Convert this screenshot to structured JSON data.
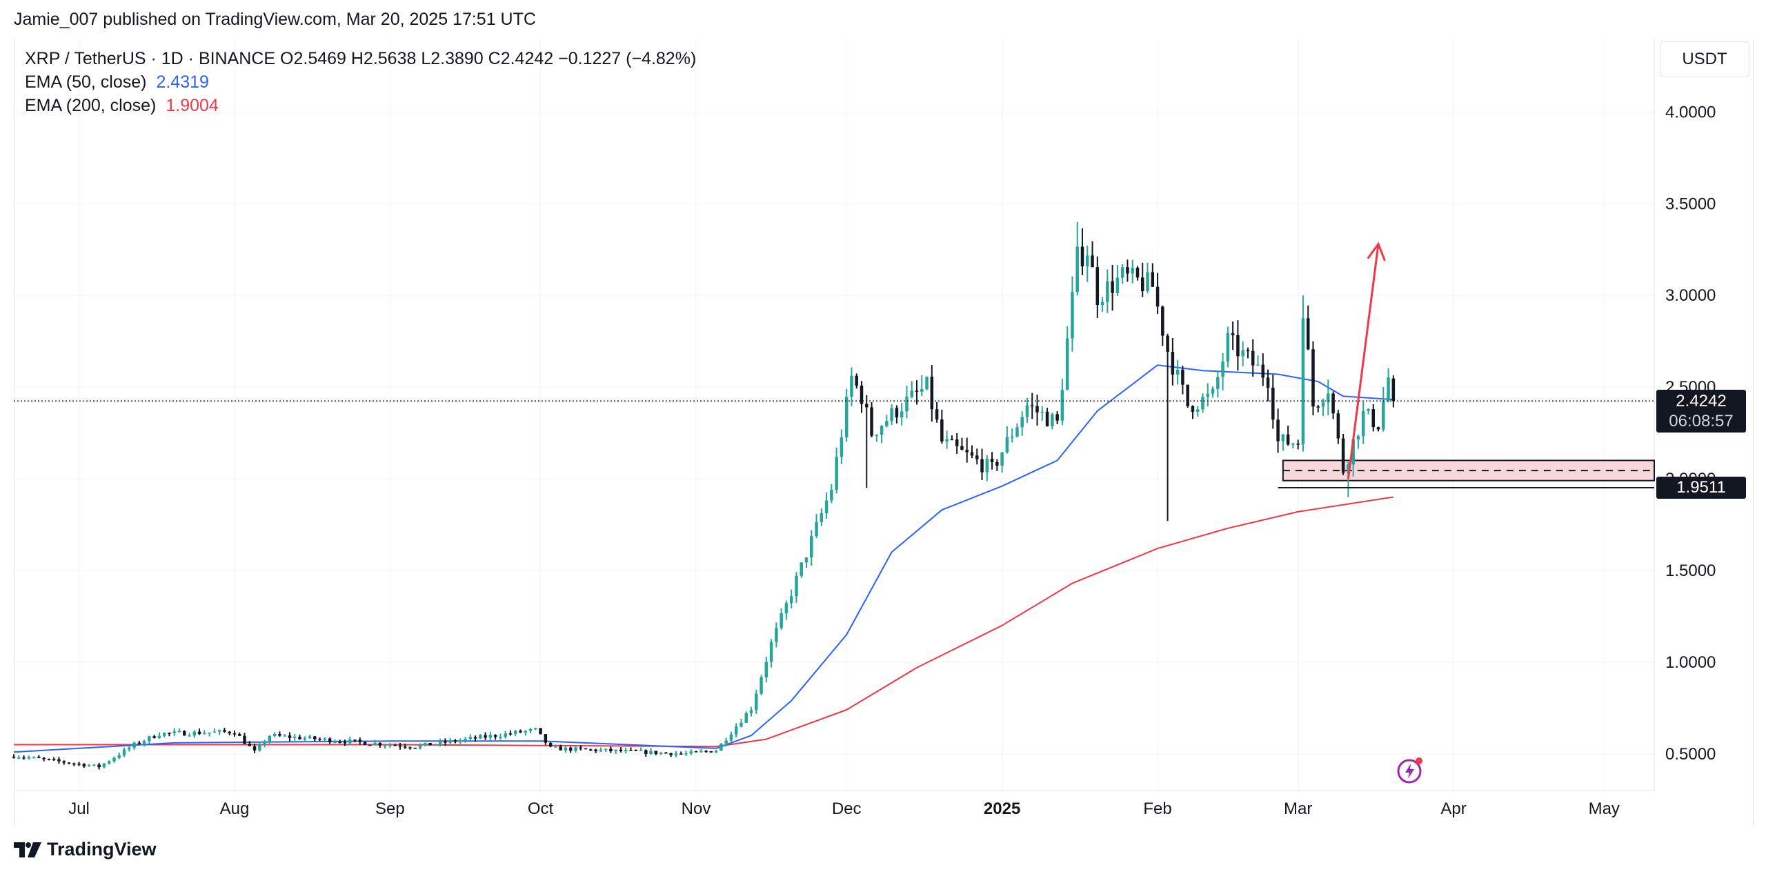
{
  "header": {
    "published": "Jamie_007 published on TradingView.com, Mar 20, 2025 17:51 UTC"
  },
  "legend": {
    "symbol_line": "XRP / TetherUS · 1D · BINANCE  O2.5469  H2.5638  L2.3890  C2.4242  −0.1227 (−4.82%)",
    "ema50_label": "EMA (50, close)",
    "ema50_value": "2.4319",
    "ema200_label": "EMA (200, close)",
    "ema200_value": "1.9004"
  },
  "currency": "USDT",
  "last_price": {
    "price": "2.4242",
    "countdown": "06:08:57"
  },
  "zone_label": "1.9511",
  "footer": {
    "brand": "TradingView"
  },
  "colors": {
    "up": "#26a69a",
    "down": "#131722",
    "ema50": "#2962ff",
    "ema200": "#f23645",
    "zone_fill": "#f8d7da",
    "arrow": "#f23645",
    "grid": "#f0f3fa"
  },
  "icons": {
    "logo": "tradingview-logo-icon",
    "lightning": "lightning-icon"
  },
  "chart_data": {
    "type": "candlestick",
    "title": "XRP / TetherUS · 1D · BINANCE",
    "yscale": "linear",
    "ylim": [
      0.3,
      4.4
    ],
    "y_ticks": [
      "0.5000",
      "1.0000",
      "1.5000",
      "2.0000",
      "2.5000",
      "3.0000",
      "3.5000",
      "4.0000"
    ],
    "x_ticks": [
      {
        "label": "Jul",
        "date": "2024-07-01"
      },
      {
        "label": "Aug",
        "date": "2024-08-01"
      },
      {
        "label": "Sep",
        "date": "2024-09-01"
      },
      {
        "label": "Oct",
        "date": "2024-10-01"
      },
      {
        "label": "Nov",
        "date": "2024-11-01"
      },
      {
        "label": "Dec",
        "date": "2024-12-01"
      },
      {
        "label": "2025",
        "date": "2025-01-01",
        "bold": true
      },
      {
        "label": "Feb",
        "date": "2025-02-01"
      },
      {
        "label": "Mar",
        "date": "2025-03-01"
      },
      {
        "label": "Apr",
        "date": "2025-04-01"
      },
      {
        "label": "May",
        "date": "2025-05-01"
      }
    ],
    "x_range": [
      "2024-06-18",
      "2025-05-11"
    ],
    "grid": true,
    "price_line": 2.4242,
    "anchors": [
      {
        "date": "2024-06-18",
        "price": 0.49
      },
      {
        "date": "2024-07-05",
        "price": 0.43
      },
      {
        "date": "2024-07-12",
        "price": 0.55
      },
      {
        "date": "2024-07-17",
        "price": 0.61
      },
      {
        "date": "2024-08-01",
        "price": 0.62
      },
      {
        "date": "2024-08-05",
        "price": 0.51
      },
      {
        "date": "2024-08-08",
        "price": 0.6
      },
      {
        "date": "2024-09-06",
        "price": 0.54
      },
      {
        "date": "2024-09-30",
        "price": 0.63
      },
      {
        "date": "2024-10-03",
        "price": 0.53
      },
      {
        "date": "2024-10-30",
        "price": 0.5
      },
      {
        "date": "2024-11-05",
        "price": 0.52
      },
      {
        "date": "2024-11-12",
        "price": 0.75
      },
      {
        "date": "2024-11-16",
        "price": 1.1
      },
      {
        "date": "2024-11-21",
        "price": 1.45
      },
      {
        "date": "2024-11-28",
        "price": 1.95
      },
      {
        "date": "2024-12-02",
        "price": 2.55
      },
      {
        "date": "2024-12-04",
        "price": 2.45
      },
      {
        "date": "2024-12-06",
        "price": 2.25
      },
      {
        "date": "2024-12-12",
        "price": 2.4
      },
      {
        "date": "2024-12-17",
        "price": 2.5
      },
      {
        "date": "2024-12-20",
        "price": 2.2
      },
      {
        "date": "2024-12-30",
        "price": 2.05
      },
      {
        "date": "2025-01-06",
        "price": 2.4
      },
      {
        "date": "2025-01-12",
        "price": 2.3
      },
      {
        "date": "2025-01-16",
        "price": 3.2
      },
      {
        "date": "2025-01-18",
        "price": 3.25
      },
      {
        "date": "2025-01-20",
        "price": 3.0
      },
      {
        "date": "2025-01-25",
        "price": 3.1
      },
      {
        "date": "2025-01-31",
        "price": 3.05
      },
      {
        "date": "2025-02-03",
        "price": 2.7
      },
      {
        "date": "2025-02-07",
        "price": 2.4
      },
      {
        "date": "2025-02-12",
        "price": 2.45
      },
      {
        "date": "2025-02-15",
        "price": 2.75
      },
      {
        "date": "2025-02-23",
        "price": 2.55
      },
      {
        "date": "2025-02-25",
        "price": 2.2
      },
      {
        "date": "2025-03-01",
        "price": 2.2
      },
      {
        "date": "2025-03-02",
        "price": 2.94
      },
      {
        "date": "2025-03-04",
        "price": 2.4
      },
      {
        "date": "2025-03-07",
        "price": 2.5
      },
      {
        "date": "2025-03-10",
        "price": 2.05
      },
      {
        "date": "2025-03-14",
        "price": 2.35
      },
      {
        "date": "2025-03-17",
        "price": 2.3
      },
      {
        "date": "2025-03-19",
        "price": 2.55
      },
      {
        "date": "2025-03-20",
        "price": 2.4242
      }
    ],
    "spikes": [
      {
        "date": "2024-12-05",
        "low": 1.95
      },
      {
        "date": "2025-02-03",
        "low": 1.77
      },
      {
        "date": "2025-03-02",
        "high": 3.0
      },
      {
        "date": "2025-03-11",
        "low": 1.9
      },
      {
        "date": "2025-01-16",
        "high": 3.4
      }
    ],
    "series": [
      {
        "name": "EMA (50, close)",
        "points": [
          [
            "2024-06-18",
            0.51
          ],
          [
            "2024-07-20",
            0.56
          ],
          [
            "2024-09-01",
            0.57
          ],
          [
            "2024-10-01",
            0.57
          ],
          [
            "2024-11-05",
            0.53
          ],
          [
            "2024-11-12",
            0.6
          ],
          [
            "2024-11-20",
            0.79
          ],
          [
            "2024-12-01",
            1.15
          ],
          [
            "2024-12-10",
            1.6
          ],
          [
            "2024-12-20",
            1.83
          ],
          [
            "2025-01-01",
            1.96
          ],
          [
            "2025-01-12",
            2.1
          ],
          [
            "2025-01-20",
            2.37
          ],
          [
            "2025-02-01",
            2.62
          ],
          [
            "2025-02-10",
            2.59
          ],
          [
            "2025-02-25",
            2.57
          ],
          [
            "2025-03-05",
            2.53
          ],
          [
            "2025-03-10",
            2.45
          ],
          [
            "2025-03-20",
            2.4319
          ]
        ]
      },
      {
        "name": "EMA (200, close)",
        "points": [
          [
            "2024-06-18",
            0.55
          ],
          [
            "2024-09-01",
            0.55
          ],
          [
            "2024-11-05",
            0.54
          ],
          [
            "2024-11-15",
            0.58
          ],
          [
            "2024-12-01",
            0.74
          ],
          [
            "2024-12-15",
            0.97
          ],
          [
            "2025-01-01",
            1.2
          ],
          [
            "2025-01-15",
            1.43
          ],
          [
            "2025-02-01",
            1.62
          ],
          [
            "2025-02-15",
            1.73
          ],
          [
            "2025-03-01",
            1.82
          ],
          [
            "2025-03-20",
            1.9004
          ]
        ]
      }
    ],
    "annotations": [
      {
        "type": "zone",
        "from": "2025-02-26",
        "to": "2025-05-11",
        "top": 2.1,
        "bottom": 1.99,
        "mid": 2.045
      },
      {
        "type": "level",
        "from": "2025-02-25",
        "value": 1.9511
      },
      {
        "type": "arrow",
        "from_date": "2025-03-11",
        "from_price": 2.0,
        "to_date": "2025-03-17",
        "to_price": 3.28
      }
    ]
  }
}
